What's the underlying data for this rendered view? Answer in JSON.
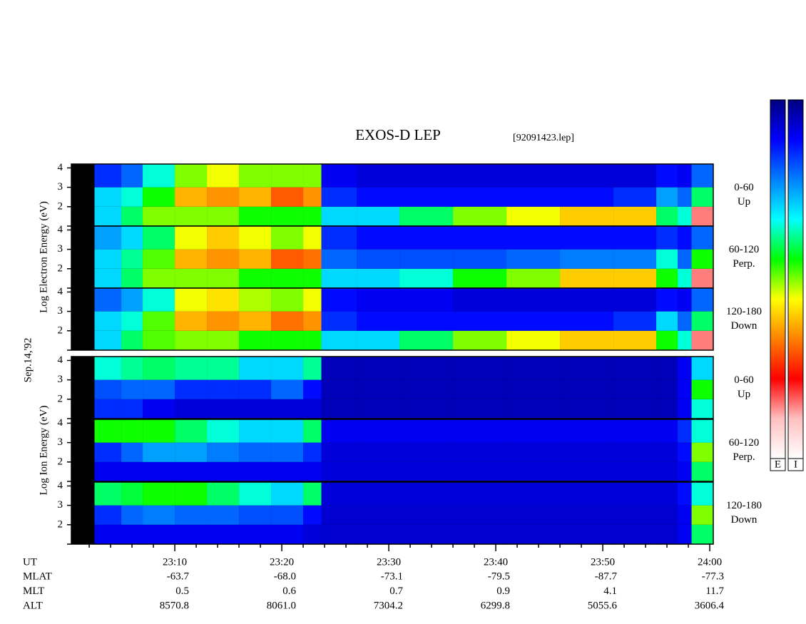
{
  "chart_data": {
    "type": "heatmap",
    "title": "EXOS-D LEP",
    "subtitle": "[92091423.lep]",
    "date_label": "Sep.14,'92",
    "xlabel": "UT",
    "xlim": [
      0.33,
      60.33
    ],
    "xticks": [
      {
        "value": 10,
        "label": "23:10"
      },
      {
        "value": 20,
        "label": "23:20"
      },
      {
        "value": 30,
        "label": "23:30"
      },
      {
        "value": 40,
        "label": "23:40"
      },
      {
        "value": 50,
        "label": "23:50"
      },
      {
        "value": 60,
        "label": "24:00"
      }
    ],
    "xminorticks": [
      2,
      4,
      6,
      8,
      12,
      14,
      16,
      18,
      22,
      24,
      26,
      28,
      32,
      34,
      36,
      38,
      42,
      44,
      46,
      48,
      52,
      54,
      56,
      58
    ],
    "x_bins": [
      2.5,
      5,
      7,
      10,
      13,
      16,
      19,
      22,
      23.7,
      27,
      31,
      36,
      41,
      46,
      51,
      55,
      57,
      58.3,
      60.3
    ],
    "y_bins": [
      1,
      2,
      3,
      4.2
    ],
    "ylim": [
      1,
      4.2
    ],
    "yticks": [
      {
        "value": 1,
        "label": null
      },
      2,
      3,
      4
    ],
    "zlim": [
      0,
      1
    ],
    "colormap": [
      "#000080",
      "#0000ff",
      "#0080ff",
      "#00ffff",
      "#00ff00",
      "#ffff00",
      "#ff8000",
      "#ff0000",
      "#ffc0c0",
      "#ffffff"
    ],
    "colorbar_labels": [
      "E",
      "I"
    ],
    "groups": [
      {
        "ylabel": "Log Electron Energy (eV)",
        "panels": [
          {
            "angle": "0-60",
            "direction": "Up",
            "values": [
              [
                0.3,
                0.4,
                0.5,
                0.5,
                0.5,
                0.45,
                0.45,
                0.45,
                0.3,
                0.3,
                0.4,
                0.5,
                0.55,
                0.6,
                0.6,
                0.4,
                0.35,
                0.85
              ],
              [
                0.3,
                0.35,
                0.45,
                0.62,
                0.65,
                0.62,
                0.7,
                0.65,
                0.15,
                0.12,
                0.12,
                0.12,
                0.12,
                0.12,
                0.15,
                0.25,
                0.2,
                0.4
              ],
              [
                0.15,
                0.2,
                0.35,
                0.5,
                0.55,
                0.5,
                0.5,
                0.5,
                0.1,
                0.08,
                0.08,
                0.08,
                0.08,
                0.08,
                0.08,
                0.12,
                0.1,
                0.2
              ]
            ]
          },
          {
            "angle": "60-120",
            "direction": "Perp.",
            "values": [
              [
                0.3,
                0.4,
                0.5,
                0.5,
                0.5,
                0.45,
                0.45,
                0.45,
                0.3,
                0.3,
                0.35,
                0.45,
                0.5,
                0.6,
                0.6,
                0.45,
                0.35,
                0.85
              ],
              [
                0.3,
                0.38,
                0.48,
                0.62,
                0.65,
                0.62,
                0.7,
                0.68,
                0.2,
                0.18,
                0.18,
                0.18,
                0.2,
                0.22,
                0.22,
                0.35,
                0.2,
                0.45
              ],
              [
                0.25,
                0.3,
                0.4,
                0.55,
                0.6,
                0.55,
                0.5,
                0.55,
                0.15,
                0.12,
                0.12,
                0.12,
                0.12,
                0.12,
                0.12,
                0.15,
                0.12,
                0.2
              ]
            ]
          },
          {
            "angle": "120-180",
            "direction": "Down",
            "values": [
              [
                0.3,
                0.4,
                0.48,
                0.5,
                0.5,
                0.45,
                0.45,
                0.45,
                0.3,
                0.3,
                0.4,
                0.5,
                0.55,
                0.6,
                0.6,
                0.45,
                0.35,
                0.85
              ],
              [
                0.3,
                0.35,
                0.48,
                0.62,
                0.65,
                0.62,
                0.68,
                0.65,
                0.15,
                0.12,
                0.12,
                0.12,
                0.12,
                0.12,
                0.15,
                0.3,
                0.2,
                0.4
              ],
              [
                0.2,
                0.25,
                0.35,
                0.55,
                0.58,
                0.52,
                0.5,
                0.55,
                0.12,
                0.1,
                0.1,
                0.08,
                0.08,
                0.08,
                0.08,
                0.12,
                0.1,
                0.2
              ]
            ]
          }
        ]
      },
      {
        "ylabel": "Log Ion Energy (eV)",
        "panels": [
          {
            "angle": "0-60",
            "direction": "Up",
            "values": [
              [
                0.15,
                0.15,
                0.1,
                0.08,
                0.08,
                0.08,
                0.08,
                0.08,
                0.05,
                0.05,
                0.05,
                0.05,
                0.05,
                0.05,
                0.05,
                0.05,
                0.1,
                0.35
              ],
              [
                0.18,
                0.2,
                0.2,
                0.15,
                0.15,
                0.15,
                0.2,
                0.12,
                0.05,
                0.05,
                0.05,
                0.05,
                0.05,
                0.05,
                0.05,
                0.05,
                0.1,
                0.45
              ],
              [
                0.35,
                0.38,
                0.4,
                0.38,
                0.38,
                0.3,
                0.3,
                0.38,
                0.05,
                0.05,
                0.05,
                0.05,
                0.05,
                0.05,
                0.05,
                0.05,
                0.1,
                0.3
              ]
            ]
          },
          {
            "angle": "60-120",
            "direction": "Perp.",
            "values": [
              [
                0.1,
                0.1,
                0.1,
                0.1,
                0.1,
                0.1,
                0.1,
                0.1,
                0.08,
                0.08,
                0.08,
                0.08,
                0.08,
                0.08,
                0.08,
                0.08,
                0.1,
                0.4
              ],
              [
                0.15,
                0.2,
                0.25,
                0.25,
                0.22,
                0.2,
                0.2,
                0.15,
                0.08,
                0.08,
                0.08,
                0.08,
                0.08,
                0.08,
                0.08,
                0.08,
                0.12,
                0.5
              ],
              [
                0.45,
                0.45,
                0.45,
                0.4,
                0.35,
                0.3,
                0.3,
                0.4,
                0.1,
                0.1,
                0.1,
                0.1,
                0.1,
                0.1,
                0.1,
                0.1,
                0.15,
                0.35
              ]
            ]
          },
          {
            "angle": "120-180",
            "direction": "Down",
            "values": [
              [
                0.1,
                0.1,
                0.1,
                0.1,
                0.1,
                0.1,
                0.1,
                0.08,
                0.07,
                0.07,
                0.07,
                0.07,
                0.07,
                0.07,
                0.07,
                0.07,
                0.1,
                0.4
              ],
              [
                0.15,
                0.2,
                0.22,
                0.2,
                0.2,
                0.18,
                0.18,
                0.12,
                0.07,
                0.07,
                0.07,
                0.07,
                0.07,
                0.07,
                0.07,
                0.07,
                0.1,
                0.5
              ],
              [
                0.4,
                0.42,
                0.45,
                0.45,
                0.4,
                0.35,
                0.3,
                0.4,
                0.08,
                0.08,
                0.08,
                0.08,
                0.08,
                0.08,
                0.08,
                0.08,
                0.12,
                0.35
              ]
            ]
          }
        ]
      }
    ],
    "ephemeris": [
      {
        "label": "MLAT",
        "values": [
          "-63.7",
          "-68.0",
          "-73.1",
          "-79.5",
          "-87.7",
          "-77.3"
        ]
      },
      {
        "label": "MLT",
        "values": [
          "0.5",
          "0.6",
          "0.7",
          "0.9",
          "4.1",
          "11.7"
        ]
      },
      {
        "label": "ALT",
        "values": [
          "8570.8",
          "8061.0",
          "7304.2",
          "6299.8",
          "5055.6",
          "3606.4"
        ]
      }
    ]
  }
}
